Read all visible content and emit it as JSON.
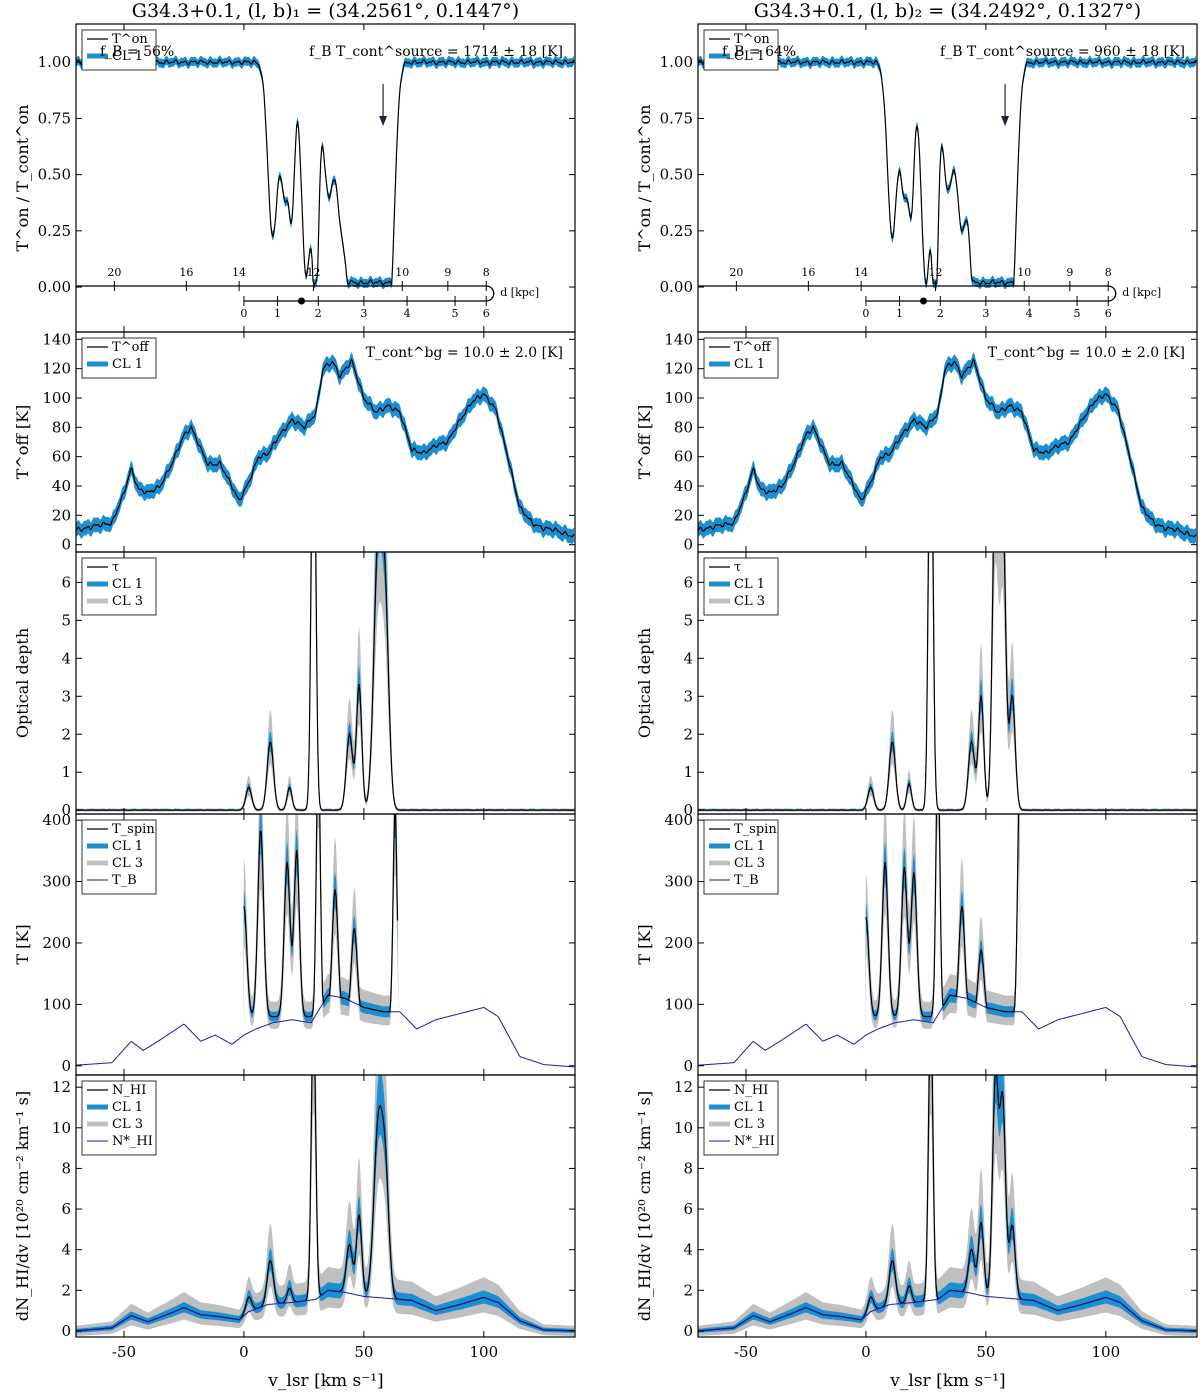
{
  "figure": {
    "xlabel": "v_lsr [km s⁻¹]",
    "xlim": [
      -70,
      138
    ],
    "xticks": [
      -50,
      0,
      50,
      100
    ],
    "colors": {
      "cl1": "#1c8fd0",
      "cl3": "#c0c0c0",
      "line": "#000000",
      "tb": "#1a1aa8"
    }
  },
  "columns": [
    {
      "title": "G34.3+0.1, (l, b)₁ = (34.2561°, 0.1447°)",
      "fB": "f_B = 56%",
      "fBT": "f_B T_cont^source = 1714 ± 18 [K]",
      "Tbg": "T_cont^bg = 10.0 ± 2.0 [K]",
      "arrow_v": 58,
      "far_side": [
        -0.05,
        0.0,
        0.05,
        0.18,
        0.35,
        0.55,
        0.78,
        0.79,
        0.77
      ],
      "abs_dips": [
        [
          12,
          0.78,
          2.0
        ],
        [
          17,
          0.55,
          1.6
        ],
        [
          20,
          0.6,
          1.2
        ],
        [
          26,
          0.95,
          2.0
        ],
        [
          30,
          1.0,
          1.2
        ],
        [
          35,
          0.55,
          2.0
        ],
        [
          41,
          0.72,
          2.5
        ],
        [
          45,
          0.75,
          1.8
        ],
        [
          49,
          0.95,
          2.5
        ],
        [
          53,
          0.98,
          2.0
        ],
        [
          57,
          1.0,
          2.0
        ],
        [
          61,
          0.95,
          2.0
        ]
      ],
      "tau_peaks": [
        [
          2,
          0.6,
          1.2
        ],
        [
          11,
          1.8,
          1.3
        ],
        [
          19,
          0.6,
          1.0
        ],
        [
          29,
          12,
          0.9
        ],
        [
          44,
          2.0,
          1.3
        ],
        [
          48,
          3.3,
          1.1
        ],
        [
          56,
          7.0,
          1.8
        ],
        [
          59,
          4.5,
          1.5
        ]
      ],
      "tspin_range": [
        0,
        64
      ],
      "tspin_peaks": [
        [
          0,
          200,
          1.2
        ],
        [
          7,
          340,
          1.2
        ],
        [
          18,
          280,
          1.2
        ],
        [
          22,
          300,
          1.1
        ],
        [
          31,
          500,
          0.8
        ],
        [
          38,
          230,
          1.2
        ],
        [
          46,
          160,
          1.2
        ],
        [
          63,
          380,
          0.8
        ]
      ]
    },
    {
      "title": "G34.3+0.1, (l, b)₂ = (34.2492°, 0.1327°)",
      "fB": "f_B = 64%",
      "fBT": "f_B T_cont^source = 960 ± 18 [K]",
      "Tbg": "T_cont^bg = 10.0 ± 2.0 [K]",
      "arrow_v": 58,
      "far_side": [
        -0.05,
        0.0,
        0.05,
        0.18,
        0.35,
        0.55,
        0.78,
        0.79,
        0.77
      ],
      "abs_dips": [
        [
          11,
          0.78,
          2.0
        ],
        [
          16,
          0.55,
          1.5
        ],
        [
          19,
          0.6,
          1.2
        ],
        [
          25,
          0.98,
          2.0
        ],
        [
          29,
          1.0,
          1.2
        ],
        [
          34,
          0.55,
          2.0
        ],
        [
          40,
          0.72,
          2.3
        ],
        [
          45,
          0.78,
          1.8
        ],
        [
          49,
          0.95,
          2.5
        ],
        [
          53,
          0.98,
          2.0
        ],
        [
          57,
          1.0,
          2.0
        ],
        [
          61,
          0.95,
          2.0
        ]
      ],
      "tau_peaks": [
        [
          2,
          0.6,
          1.2
        ],
        [
          11,
          1.8,
          1.3
        ],
        [
          18,
          0.7,
          1.0
        ],
        [
          27,
          12,
          0.9
        ],
        [
          44,
          1.8,
          1.3
        ],
        [
          48,
          3.0,
          1.1
        ],
        [
          54,
          9.0,
          1.2
        ],
        [
          57,
          8.0,
          1.2
        ],
        [
          61,
          3.0,
          1.2
        ]
      ],
      "tspin_range": [
        0,
        64
      ],
      "tspin_peaks": [
        [
          0,
          180,
          1.2
        ],
        [
          8,
          280,
          1.2
        ],
        [
          16,
          270,
          1.2
        ],
        [
          20,
          260,
          1.2
        ],
        [
          30,
          500,
          0.8
        ],
        [
          40,
          200,
          1.2
        ],
        [
          48,
          120,
          1.2
        ],
        [
          64,
          420,
          0.8
        ]
      ]
    }
  ],
  "panels": [
    {
      "id": "on",
      "ylabel": "T^on / T_cont^on",
      "ylim": [
        -0.2,
        1.17
      ],
      "yticks": [
        "0.00",
        "0.25",
        "0.50",
        "0.75",
        "1.00"
      ],
      "legend": [
        "T^on",
        "CL 1"
      ]
    },
    {
      "id": "off",
      "ylabel": "T^off [K]",
      "ylim": [
        -5,
        145
      ],
      "yticks": [
        "0",
        "20",
        "40",
        "60",
        "80",
        "100",
        "120",
        "140"
      ],
      "legend": [
        "T^off",
        "CL 1"
      ]
    },
    {
      "id": "tau",
      "ylabel": "Optical depth",
      "ylim": [
        -0.1,
        6.8
      ],
      "yticks": [
        "0",
        "1",
        "2",
        "3",
        "4",
        "5",
        "6"
      ],
      "legend": [
        "τ",
        "CL 1",
        "CL 3"
      ]
    },
    {
      "id": "tspin",
      "ylabel": "T [K]",
      "ylim": [
        -15,
        410
      ],
      "yticks": [
        "0",
        "100",
        "200",
        "300",
        "400"
      ],
      "legend": [
        "T_spin",
        "CL 1",
        "CL 3",
        "T_B"
      ]
    },
    {
      "id": "nhi",
      "ylabel": "dN_HI/dv [10²⁰ cm⁻² km⁻¹ s]",
      "ylim": [
        -0.3,
        12.6
      ],
      "yticks": [
        "0",
        "2",
        "4",
        "6",
        "8",
        "10",
        "12"
      ],
      "legend": [
        "N_HI",
        "CL 1",
        "CL 3",
        "N*_HI"
      ]
    }
  ],
  "distance_axes": {
    "label": "d [kpc]",
    "far": {
      "ticks": [
        "20",
        "16",
        "14",
        "12",
        "10",
        "9",
        "8"
      ],
      "v": [
        -54,
        -24,
        -2,
        29,
        66,
        85,
        101
      ]
    },
    "near": {
      "ticks": [
        "0",
        "1",
        "2",
        "3",
        "4",
        "5",
        "6"
      ],
      "v": [
        0,
        14,
        31,
        50,
        68,
        88,
        101
      ]
    },
    "tangent_dot_v": 24
  },
  "tb_profile": {
    "v": [
      -70,
      -55,
      -47,
      -42,
      -35,
      -25,
      -18,
      -12,
      -5,
      0,
      5,
      12,
      20,
      28,
      35,
      42,
      50,
      58,
      65,
      72,
      80,
      90,
      100,
      106,
      115,
      125,
      138
    ],
    "tb": [
      1,
      5,
      40,
      25,
      42,
      68,
      40,
      50,
      35,
      50,
      60,
      70,
      75,
      70,
      115,
      110,
      95,
      88,
      88,
      60,
      75,
      85,
      95,
      80,
      15,
      2,
      -2
    ]
  },
  "toff_profile": {
    "v": [
      -70,
      -55,
      -50,
      -47,
      -44,
      -40,
      -35,
      -30,
      -25,
      -22,
      -18,
      -15,
      -10,
      -5,
      -2,
      2,
      6,
      10,
      15,
      20,
      25,
      30,
      33,
      37,
      40,
      45,
      50,
      55,
      60,
      65,
      70,
      75,
      80,
      85,
      90,
      95,
      100,
      105,
      110,
      115,
      120,
      125,
      130,
      138
    ],
    "toff": [
      10,
      15,
      35,
      52,
      38,
      35,
      40,
      55,
      75,
      80,
      65,
      55,
      55,
      40,
      30,
      42,
      60,
      62,
      75,
      85,
      80,
      90,
      120,
      125,
      115,
      125,
      100,
      90,
      95,
      90,
      65,
      62,
      68,
      70,
      85,
      97,
      103,
      92,
      60,
      25,
      15,
      11,
      10,
      5
    ]
  },
  "nhi_bg_profile": {
    "v": [
      -70,
      -55,
      -47,
      -40,
      -30,
      -25,
      -18,
      -10,
      -2,
      2,
      10,
      20,
      30,
      35,
      42,
      50,
      60,
      70,
      80,
      90,
      100,
      106,
      115,
      125,
      138
    ],
    "n": [
      0,
      0.15,
      0.75,
      0.45,
      0.9,
      1.15,
      0.8,
      0.7,
      0.55,
      0.95,
      1.3,
      1.4,
      1.55,
      2.0,
      1.9,
      1.7,
      1.6,
      1.5,
      1.0,
      1.3,
      1.65,
      1.4,
      0.5,
      0.05,
      0
    ]
  }
}
